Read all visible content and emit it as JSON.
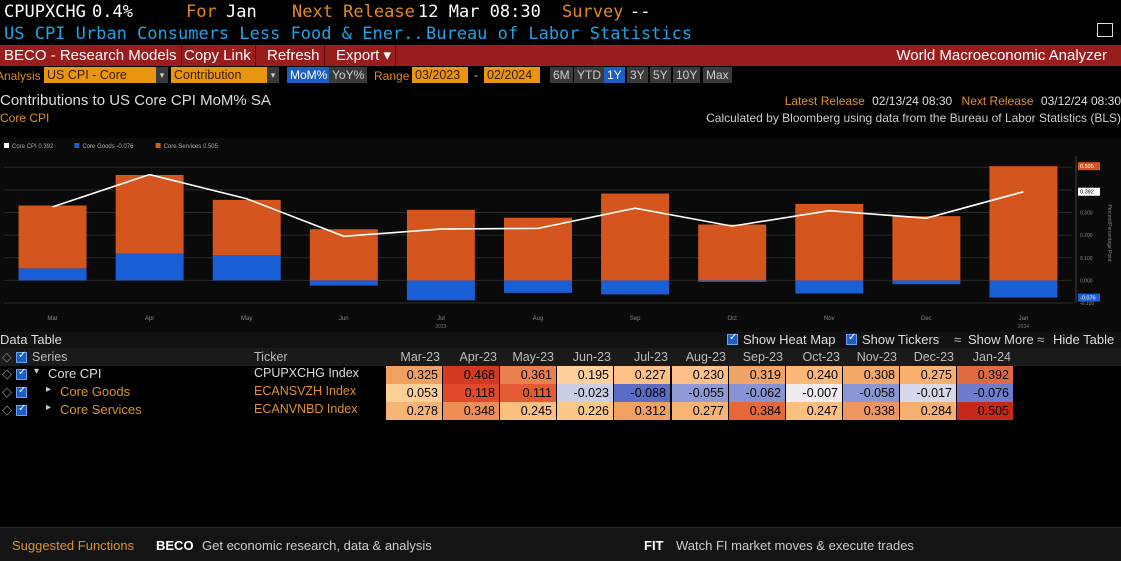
{
  "header": {
    "ticker": "CPUPXCHG",
    "value": "0.4%",
    "for_label": "For",
    "for_value": "Jan",
    "next_release_label": "Next Release",
    "next_release_value": "12 Mar 08:30",
    "survey_label": "Survey",
    "survey_value": "--",
    "series_name": "US CPI Urban Consumers Less Food & Ener...",
    "source": "Bureau of Labor Statistics"
  },
  "menubar": {
    "items": [
      "BECO - Research Models",
      "Copy Link",
      "Refresh",
      "Export ▾"
    ],
    "app_title": "World Macroeconomic Analyzer"
  },
  "options": {
    "analysis_label": "Analysis",
    "analysis_value": "US CPI - Core",
    "view_value": "Contribution",
    "toggles": [
      "MoM%",
      "YoY%"
    ],
    "range_label": "Range",
    "range_start": "03/2023",
    "range_end": "02/2024",
    "periods": [
      "6M",
      "YTD",
      "1Y",
      "3Y",
      "5Y",
      "10Y",
      "Max"
    ],
    "active_period": "1Y"
  },
  "chart_header": {
    "title": "Contributions to US Core CPI MoM% SA",
    "subtitle": "Core CPI",
    "latest_release_label": "Latest Release",
    "latest_release_value": "02/13/24 08:30",
    "next_release_label": "Next Release",
    "next_release_value": "03/12/24 08:30",
    "calc_note": "Calculated by Bloomberg using data from the Bureau of Labor Statistics (BLS)"
  },
  "chart_data": {
    "type": "bar",
    "categories": [
      "Mar",
      "Apr",
      "May",
      "Jun",
      "Jul",
      "Aug",
      "Sep",
      "Oct",
      "Nov",
      "Dec",
      "Jan"
    ],
    "year_labels": [
      "2023",
      "2024"
    ],
    "series": [
      {
        "name": "Core CPI 0.392",
        "type": "line",
        "color": "#ffffff",
        "values": [
          0.325,
          0.468,
          0.361,
          0.195,
          0.227,
          0.23,
          0.319,
          0.24,
          0.308,
          0.275,
          0.392
        ]
      },
      {
        "name": "Core Goods -0.076",
        "type": "bar",
        "color": "#1b5fd6",
        "values": [
          0.053,
          0.118,
          0.111,
          -0.023,
          -0.088,
          -0.055,
          -0.062,
          -0.007,
          -0.058,
          -0.017,
          -0.076
        ]
      },
      {
        "name": "Core Services 0.505",
        "type": "bar",
        "color": "#d4561e",
        "values": [
          0.278,
          0.348,
          0.245,
          0.226,
          0.312,
          0.277,
          0.384,
          0.247,
          0.338,
          0.284,
          0.505
        ]
      }
    ],
    "ylabel": "Percent/Percentage Point",
    "ylim": [
      -0.1,
      0.55
    ],
    "y_ticks": [
      -0.1,
      0.0,
      0.1,
      0.2,
      0.3,
      0.4,
      0.5
    ],
    "right_value_labels": [
      "0.505",
      "0.392",
      "-0.076"
    ],
    "grid": true,
    "legend_placement": "top-left"
  },
  "data_table": {
    "title": "Data Table",
    "controls": [
      "Show Heat Map",
      "Show Tickers",
      "Show More",
      "Hide Table"
    ],
    "columns": [
      "Series",
      "Ticker",
      "Mar-23",
      "Apr-23",
      "May-23",
      "Jun-23",
      "Jul-23",
      "Aug-23",
      "Sep-23",
      "Oct-23",
      "Nov-23",
      "Dec-23",
      "Jan-24"
    ],
    "rows": [
      {
        "name": "Core CPI",
        "ticker": "CPUPXCHG Index",
        "values": [
          "0.325",
          "0.468",
          "0.361",
          "0.195",
          "0.227",
          "0.230",
          "0.319",
          "0.240",
          "0.308",
          "0.275",
          "0.392"
        ],
        "colors": [
          "#f0a060",
          "#d23a20",
          "#ea8050",
          "#ffd09a",
          "#ffc088",
          "#ffc088",
          "#f0a468",
          "#fbb878",
          "#f2a868",
          "#f8b070",
          "#e06a40"
        ]
      },
      {
        "name": "Core Goods",
        "ticker": "ECANSVZH Index",
        "values": [
          "0.053",
          "0.118",
          "0.111",
          "-0.023",
          "-0.088",
          "-0.055",
          "-0.062",
          "-0.007",
          "-0.058",
          "-0.017",
          "-0.076"
        ],
        "colors": [
          "#ffcf98",
          "#e04a2a",
          "#e45a32",
          "#c9cde6",
          "#5a6bc8",
          "#8f9ad6",
          "#8794d4",
          "#f0ebf0",
          "#8b97d4",
          "#d8d8ea",
          "#6d7ccd"
        ]
      },
      {
        "name": "Core Services",
        "ticker": "ECANVNBD Index",
        "values": [
          "0.278",
          "0.348",
          "0.245",
          "0.226",
          "0.312",
          "0.277",
          "0.384",
          "0.247",
          "0.338",
          "0.284",
          "0.505"
        ],
        "colors": [
          "#f8b474",
          "#ee8e56",
          "#fbc080",
          "#fcc888",
          "#f2a060",
          "#f8b474",
          "#e66838",
          "#fbc080",
          "#ef9660",
          "#f6b070",
          "#c8281a"
        ]
      }
    ]
  },
  "footer": {
    "label": "Suggested Functions",
    "items": [
      {
        "code": "BECO",
        "desc": "Get economic research, data & analysis"
      },
      {
        "code": "FIT",
        "desc": "Watch FI market moves & execute trades"
      }
    ]
  }
}
